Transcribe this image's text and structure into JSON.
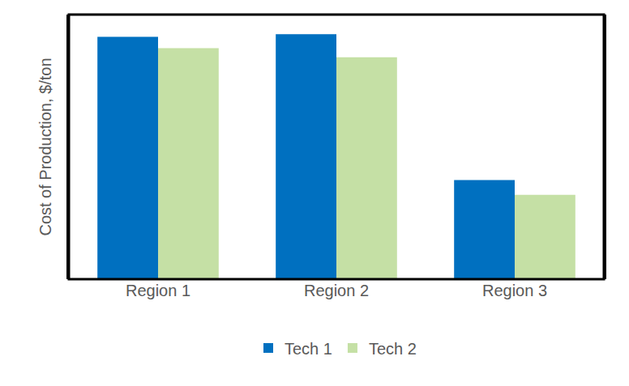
{
  "chart_data": {
    "type": "bar",
    "y_label": "Cost of Production, $/ton",
    "categories": [
      "Region 1",
      "Region 2",
      "Region 3"
    ],
    "series": [
      {
        "name": "Tech 1",
        "color": "#0070c0",
        "values": [
          91.6,
          92.6,
          37.5
        ]
      },
      {
        "name": "Tech 2",
        "color": "#c5e0a5",
        "values": [
          87.3,
          83.9,
          31.9
        ]
      }
    ],
    "ylim": [
      0,
      100
    ],
    "grid": false,
    "legend": "bottom",
    "tick_labels": "x"
  }
}
